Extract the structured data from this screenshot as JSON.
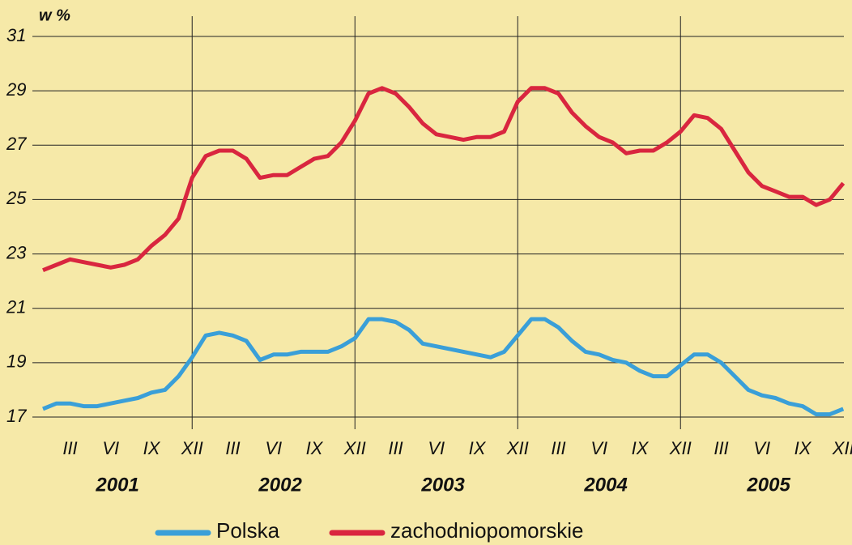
{
  "chart_data": {
    "type": "line",
    "y_label": "w %",
    "categories": [
      null,
      null,
      "III",
      null,
      null,
      "VI",
      null,
      null,
      "IX",
      null,
      null,
      "XII",
      null,
      null,
      "III",
      null,
      null,
      "VI",
      null,
      null,
      "IX",
      null,
      null,
      "XII",
      null,
      null,
      "III",
      null,
      null,
      "VI",
      null,
      null,
      "IX",
      null,
      null,
      "XII",
      null,
      null,
      "III",
      null,
      null,
      "VI",
      null,
      null,
      "IX",
      null,
      null,
      "XII",
      null,
      null,
      "III",
      null,
      null,
      "VI",
      null,
      null,
      "IX",
      null,
      null,
      "XII"
    ],
    "years": [
      "2001",
      "2002",
      "2003",
      "2004",
      "2005"
    ],
    "series": [
      {
        "name": "Polska",
        "color": "#3a9fd8",
        "values": [
          17.3,
          17.5,
          17.5,
          17.4,
          17.4,
          17.5,
          17.6,
          17.7,
          17.9,
          18.0,
          18.5,
          19.2,
          20.0,
          20.1,
          20.0,
          19.8,
          19.1,
          19.3,
          19.3,
          19.4,
          19.4,
          19.4,
          19.6,
          19.9,
          20.6,
          20.6,
          20.5,
          20.2,
          19.7,
          19.6,
          19.5,
          19.4,
          19.3,
          19.2,
          19.4,
          20.0,
          20.6,
          20.6,
          20.3,
          19.8,
          19.4,
          19.3,
          19.1,
          19.0,
          18.7,
          18.5,
          18.5,
          18.9,
          19.3,
          19.3,
          19.0,
          18.5,
          18.0,
          17.8,
          17.7,
          17.5,
          17.4,
          17.1,
          17.1,
          17.3
        ]
      },
      {
        "name": "zachodniopomorskie",
        "color": "#d9263f",
        "values": [
          22.4,
          22.6,
          22.8,
          22.7,
          22.6,
          22.5,
          22.6,
          22.8,
          23.3,
          23.7,
          24.3,
          25.8,
          26.6,
          26.8,
          26.8,
          26.5,
          25.8,
          25.9,
          25.9,
          26.2,
          26.5,
          26.6,
          27.1,
          27.9,
          28.9,
          29.1,
          28.9,
          28.4,
          27.8,
          27.4,
          27.3,
          27.2,
          27.3,
          27.3,
          27.5,
          28.6,
          29.1,
          29.1,
          28.9,
          28.2,
          27.7,
          27.3,
          27.1,
          26.7,
          26.8,
          26.8,
          27.1,
          27.5,
          28.1,
          28.0,
          27.6,
          26.8,
          26.0,
          25.5,
          25.3,
          25.1,
          25.1,
          24.8,
          25.0,
          25.6
        ]
      }
    ],
    "ylim": [
      17,
      31
    ],
    "yticks": [
      17,
      19,
      21,
      23,
      25,
      27,
      29,
      31
    ],
    "grid": true
  }
}
